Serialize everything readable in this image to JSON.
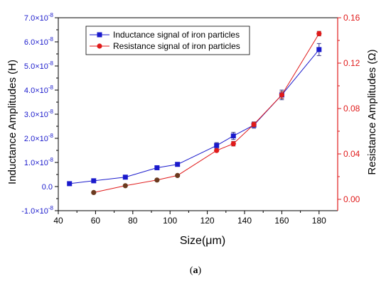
{
  "chart_data": {
    "type": "line",
    "title": "",
    "xlabel": "Size(μm)",
    "ylabel_left": "Inductance Amplitudes (H)",
    "ylabel_right": "Resistance Amplitudes (Ω)",
    "xlim": [
      40,
      190
    ],
    "ylim_left": [
      -1e-08,
      7e-08
    ],
    "ylim_right": [
      -0.01,
      0.16
    ],
    "x_ticks": [
      "40",
      "60",
      "80",
      "100",
      "120",
      "140",
      "160",
      "180"
    ],
    "y_left_ticks": [
      {
        "value": -1e-08,
        "mant": "-1.0",
        "exp": "-8"
      },
      {
        "value": 0.0,
        "mant": "0.0",
        "exp": ""
      },
      {
        "value": 1e-08,
        "mant": "1.0",
        "exp": "-8"
      },
      {
        "value": 2e-08,
        "mant": "2.0",
        "exp": "-8"
      },
      {
        "value": 3e-08,
        "mant": "3.0",
        "exp": "-8"
      },
      {
        "value": 4e-08,
        "mant": "4.0",
        "exp": "-8"
      },
      {
        "value": 5e-08,
        "mant": "5.0",
        "exp": "-8"
      },
      {
        "value": 6e-08,
        "mant": "6.0",
        "exp": "-8"
      },
      {
        "value": 7e-08,
        "mant": "7.0",
        "exp": "-8"
      }
    ],
    "y_right_ticks": [
      "0.00",
      "0.04",
      "0.08",
      "0.12",
      "0.16"
    ],
    "legend_position": "top-left",
    "grid": false,
    "series": [
      {
        "name": "Inductance signal of iron particles",
        "axis": "left",
        "color": "#1a1acc",
        "marker": "square",
        "x": [
          46,
          59,
          76,
          93,
          104,
          125,
          134,
          145,
          160,
          180
        ],
        "y": [
          1.2e-09,
          2.4e-09,
          3.9e-09,
          7.8e-09,
          9.2e-09,
          1.7e-08,
          2.1e-08,
          2.55e-08,
          3.8e-08,
          5.68e-08
        ],
        "err": [
          0,
          0,
          0,
          0,
          0,
          1.2e-09,
          1.5e-09,
          1.3e-09,
          2e-09,
          2.5e-09
        ]
      },
      {
        "name": "Resistance signal of iron particles",
        "axis": "right",
        "color": "#e01a1a",
        "marker": "circle",
        "x": [
          59,
          76,
          93,
          104,
          125,
          134,
          145,
          160,
          180
        ],
        "y": [
          0.006,
          0.012,
          0.017,
          0.021,
          0.043,
          0.049,
          0.066,
          0.092,
          0.146
        ],
        "err": [
          0,
          0,
          0,
          0,
          0,
          0.002,
          0.002,
          0.003,
          0.002
        ]
      }
    ]
  },
  "caption": {
    "text": "(a)",
    "open": "(",
    "letter": "a",
    "close": ")"
  }
}
